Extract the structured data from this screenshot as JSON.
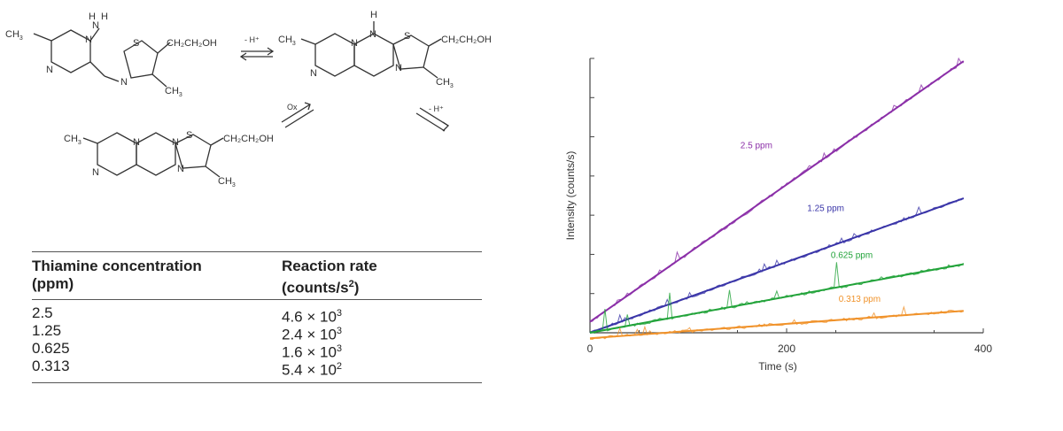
{
  "scheme": {
    "labels": {
      "ch3": "CH",
      "ch3_sub": "3",
      "nh2_n": "N",
      "nh2_h": "H",
      "n": "N",
      "s": "S",
      "side_chain": "CH₂CH₂OH",
      "h": "H",
      "minus_h_top": "- H⁺",
      "ox": "Ox",
      "minus_h_right": "- H⁺"
    }
  },
  "table": {
    "headers": [
      [
        "Thiamine concentration",
        "(ppm)"
      ],
      [
        "Reaction rate",
        "(counts/s",
        "2",
        ")"
      ]
    ],
    "rows": [
      {
        "conc": "2.5",
        "rate": "4.6 × 10",
        "exp": "3"
      },
      {
        "conc": "1.25",
        "rate": "2.4 × 10",
        "exp": "3"
      },
      {
        "conc": "0.625",
        "rate": "1.6 × 10",
        "exp": "3"
      },
      {
        "conc": "0.313",
        "rate": "5.4 × 10",
        "exp": "2"
      }
    ]
  },
  "chart_data": {
    "type": "line",
    "xlabel": "Time (s)",
    "ylabel": "Intensity (counts/s)",
    "xlim": [
      0,
      400
    ],
    "ticks_x": [
      "0",
      "200",
      "400"
    ],
    "grid": false,
    "series": [
      {
        "name": "2.5 ppm",
        "color": "#8B2FA8",
        "x": [
          0,
          380
        ],
        "y": [
          0.04,
          0.99
        ]
      },
      {
        "name": "1.25 ppm",
        "color": "#3A35A8",
        "x": [
          0,
          380
        ],
        "y": [
          0.0,
          0.49
        ]
      },
      {
        "name": "0.625 ppm",
        "color": "#22A33A",
        "x": [
          0,
          380
        ],
        "y": [
          0.0,
          0.25
        ]
      },
      {
        "name": "0.313 ppm",
        "color": "#F0922A",
        "x": [
          0,
          380
        ],
        "y": [
          -0.02,
          0.08
        ]
      }
    ]
  }
}
